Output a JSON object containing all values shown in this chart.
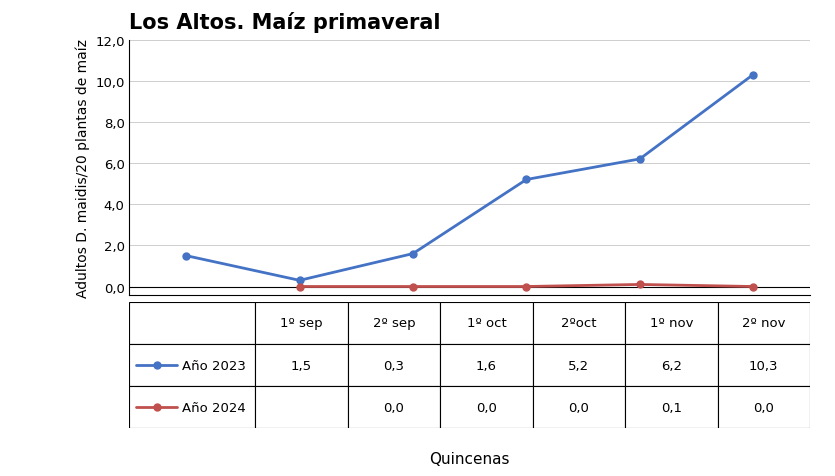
{
  "title": "Los Altos. Maíz primaveral",
  "ylabel": "Adultos D. maidis/20 plantas de maíz",
  "xlabel": "Quincenas",
  "x_labels": [
    "1º sep",
    "2º sep",
    "1º oct",
    "2ºoct",
    "1º nov",
    "2º nov"
  ],
  "series": [
    {
      "label": "Año 2023",
      "color": "#4472C4",
      "marker": "o",
      "x_indices": [
        0,
        1,
        2,
        3,
        4,
        5
      ],
      "values": [
        1.5,
        0.3,
        1.6,
        5.2,
        6.2,
        10.3
      ]
    },
    {
      "label": "Año 2024",
      "color": "#C0504D",
      "marker": "o",
      "x_indices": [
        1,
        2,
        3,
        4,
        5
      ],
      "values": [
        0.0,
        0.0,
        0.0,
        0.1,
        0.0
      ]
    }
  ],
  "table_data": [
    [
      "1,5",
      "0,3",
      "1,6",
      "5,2",
      "6,2",
      "10,3"
    ],
    [
      "",
      "0,0",
      "0,0",
      "0,0",
      "0,1",
      "0,0"
    ]
  ],
  "ylim": [
    -0.4,
    12.0
  ],
  "yticks": [
    0.0,
    2.0,
    4.0,
    6.0,
    8.0,
    10.0,
    12.0
  ],
  "ytick_labels": [
    "0,0",
    "2,0",
    "4,0",
    "6,0",
    "8,0",
    "10,0",
    "12,0"
  ],
  "background_color": "#FFFFFF",
  "title_fontsize": 15,
  "axis_label_fontsize": 10,
  "tick_fontsize": 9.5,
  "table_fontsize": 9.5,
  "line_width": 2.0,
  "marker_size": 5
}
